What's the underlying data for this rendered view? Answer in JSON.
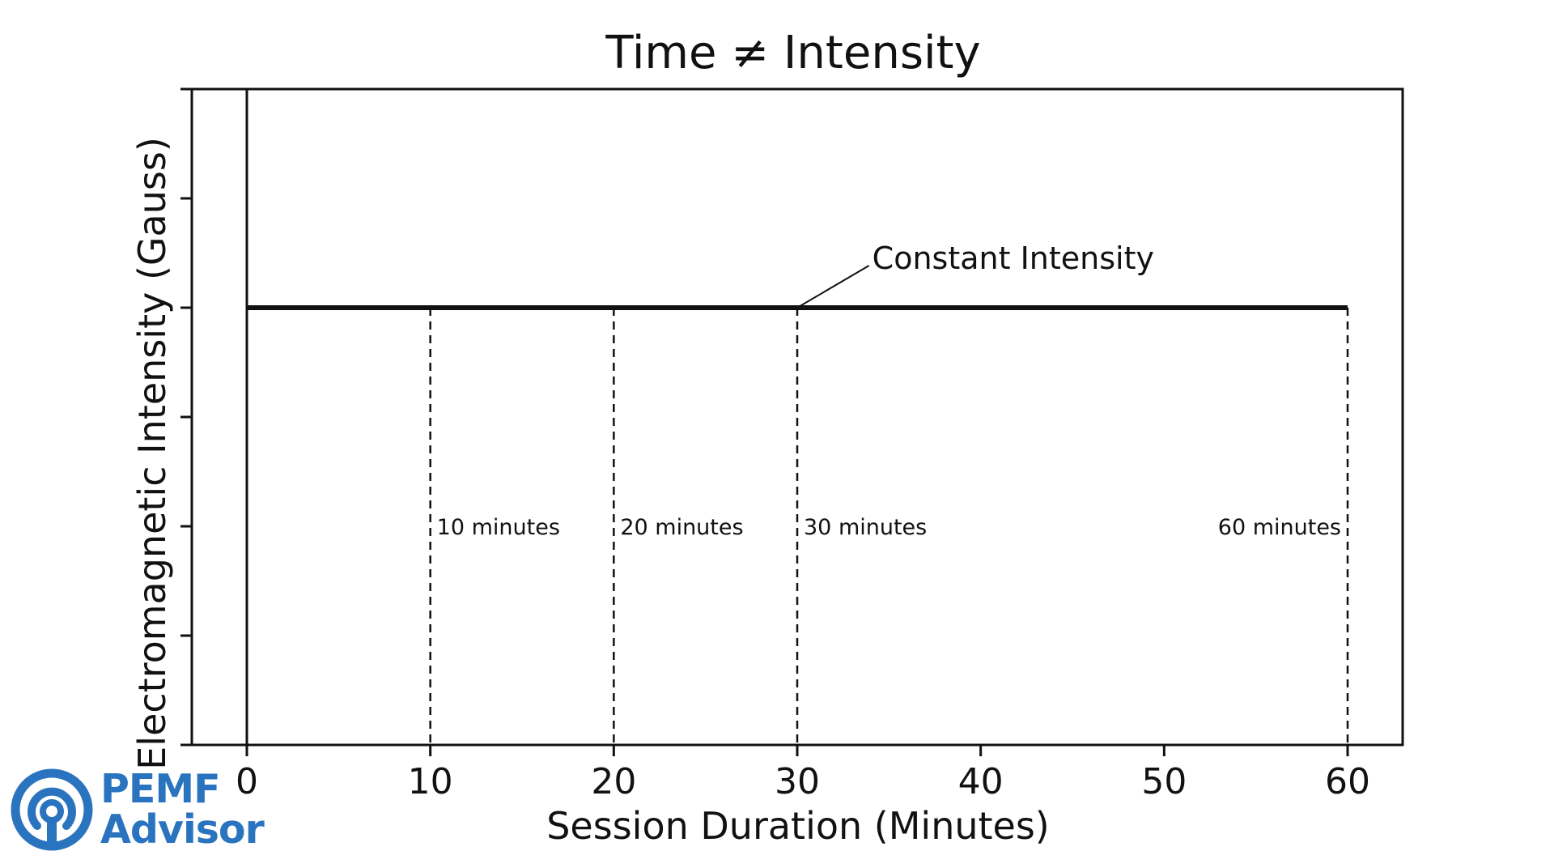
{
  "chart_data": {
    "type": "line",
    "title": "Time ≠ Intensity",
    "xlabel": "Session Duration (Minutes)",
    "ylabel": "Electromagnetic Intensity (Gauss)",
    "xlim": [
      -3,
      63
    ],
    "ylim": [
      0,
      6
    ],
    "x_ticks": [
      0,
      10,
      20,
      30,
      40,
      50,
      60
    ],
    "y_ticks": [
      0,
      1,
      2,
      3,
      4,
      5,
      6
    ],
    "y_tick_labels_shown": false,
    "series": [
      {
        "name": "Constant Intensity",
        "x": [
          0,
          60
        ],
        "y": [
          4,
          4
        ]
      }
    ],
    "vertical_markers": [
      {
        "x": 10,
        "label": "10 minutes",
        "label_side": "right"
      },
      {
        "x": 20,
        "label": "20 minutes",
        "label_side": "right"
      },
      {
        "x": 30,
        "label": "30 minutes",
        "label_side": "right"
      },
      {
        "x": 60,
        "label": "60 minutes",
        "label_side": "left"
      }
    ],
    "marker_label_y": 2,
    "annotation": {
      "text": "Constant Intensity",
      "target_x": 30,
      "target_y": 4,
      "text_x": 34,
      "text_y": 4.4
    }
  },
  "logo": {
    "line1": "PEMF",
    "line2": "Advisor",
    "color": "#2a74bf"
  },
  "colors": {
    "line": "#111111",
    "axis": "#111111",
    "background": "#ffffff"
  }
}
